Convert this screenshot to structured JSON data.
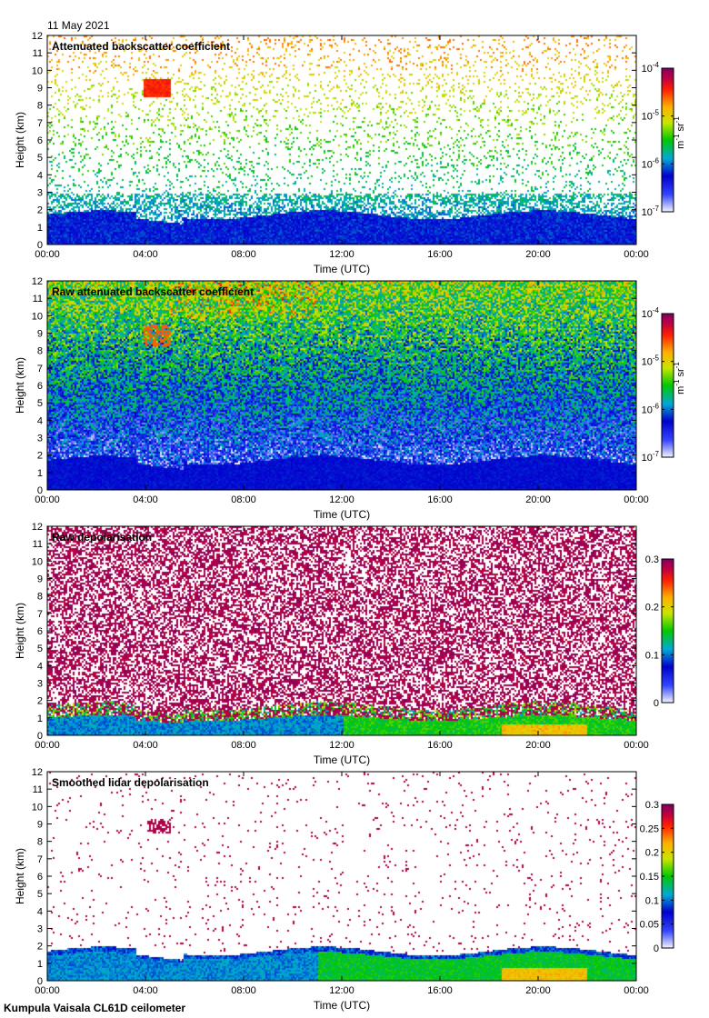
{
  "figure": {
    "date": "11 May 2021",
    "footer": "Kumpula Vaisala CL61D ceilometer"
  },
  "chart_data": [
    {
      "type": "heatmap",
      "title": "Attenuated backscatter coefficient",
      "xlabel": "Time (UTC)",
      "ylabel": "Height (km)",
      "xlim": [
        0,
        24
      ],
      "ylim": [
        0,
        12
      ],
      "x_ticks": [
        "00:00",
        "04:00",
        "08:00",
        "12:00",
        "16:00",
        "20:00",
        "00:00"
      ],
      "y_ticks": [
        "0",
        "1",
        "2",
        "3",
        "4",
        "5",
        "6",
        "7",
        "8",
        "9",
        "10",
        "11",
        "12"
      ],
      "colorbar": {
        "scale": "log",
        "range": [
          1e-07,
          0.0001
        ],
        "ticks": [
          {
            "base": "10",
            "exp": "-4"
          },
          {
            "base": "10",
            "exp": "-5"
          },
          {
            "base": "10",
            "exp": "-6"
          },
          {
            "base": "10",
            "exp": "-7"
          }
        ],
        "unit": {
          "a": "m",
          "a_exp": "-1",
          "b": "sr",
          "b_exp": "-1"
        }
      },
      "features": [
        {
          "feature": "boundary layer",
          "time_h": [
            0,
            24
          ],
          "height_km": [
            0,
            2.0
          ]
        },
        {
          "feature": "elevated aerosol plume",
          "time_h": [
            4.0,
            5.0
          ],
          "height_km": [
            8.5,
            9.5
          ]
        },
        {
          "feature": "high-level signal",
          "time_h": [
            2,
            11
          ],
          "height_km": [
            10,
            11.5
          ]
        }
      ]
    },
    {
      "type": "heatmap",
      "title": "Raw attenuated backscatter coefficient",
      "xlabel": "Time (UTC)",
      "ylabel": "Height (km)",
      "xlim": [
        0,
        24
      ],
      "ylim": [
        0,
        12
      ],
      "x_ticks": [
        "00:00",
        "04:00",
        "08:00",
        "12:00",
        "16:00",
        "20:00",
        "00:00"
      ],
      "y_ticks": [
        "0",
        "1",
        "2",
        "3",
        "4",
        "5",
        "6",
        "7",
        "8",
        "9",
        "10",
        "11",
        "12"
      ],
      "colorbar": {
        "scale": "log",
        "range": [
          1e-07,
          0.0001
        ],
        "ticks": [
          {
            "base": "10",
            "exp": "-4"
          },
          {
            "base": "10",
            "exp": "-5"
          },
          {
            "base": "10",
            "exp": "-6"
          },
          {
            "base": "10",
            "exp": "-7"
          }
        ],
        "unit": {
          "a": "m",
          "a_exp": "-1",
          "b": "sr",
          "b_exp": "-1"
        }
      }
    },
    {
      "type": "heatmap",
      "title": "Raw depolarisation",
      "xlabel": "Time (UTC)",
      "ylabel": "Height (km)",
      "xlim": [
        0,
        24
      ],
      "ylim": [
        0,
        12
      ],
      "x_ticks": [
        "00:00",
        "04:00",
        "08:00",
        "12:00",
        "16:00",
        "20:00",
        "00:00"
      ],
      "y_ticks": [
        "0",
        "1",
        "2",
        "3",
        "4",
        "5",
        "6",
        "7",
        "8",
        "9",
        "10",
        "11",
        "12"
      ],
      "colorbar": {
        "scale": "linear",
        "range": [
          0,
          0.3
        ],
        "ticks": [
          "0.3",
          "0.2",
          "0.1",
          "0"
        ]
      }
    },
    {
      "type": "heatmap",
      "title": "Smoothed lidar depolarisation",
      "xlabel": "Time (UTC)",
      "ylabel": "Height (km)",
      "xlim": [
        0,
        24
      ],
      "ylim": [
        0,
        12
      ],
      "x_ticks": [
        "00:00",
        "04:00",
        "08:00",
        "12:00",
        "16:00",
        "20:00",
        "00:00"
      ],
      "y_ticks": [
        "0",
        "1",
        "2",
        "3",
        "4",
        "5",
        "6",
        "7",
        "8",
        "9",
        "10",
        "11",
        "12"
      ],
      "colorbar": {
        "scale": "linear",
        "range": [
          0,
          0.3
        ],
        "ticks": [
          "0.3",
          "0.25",
          "0.2",
          "0.15",
          "0.1",
          "0.05",
          "0"
        ]
      }
    }
  ]
}
